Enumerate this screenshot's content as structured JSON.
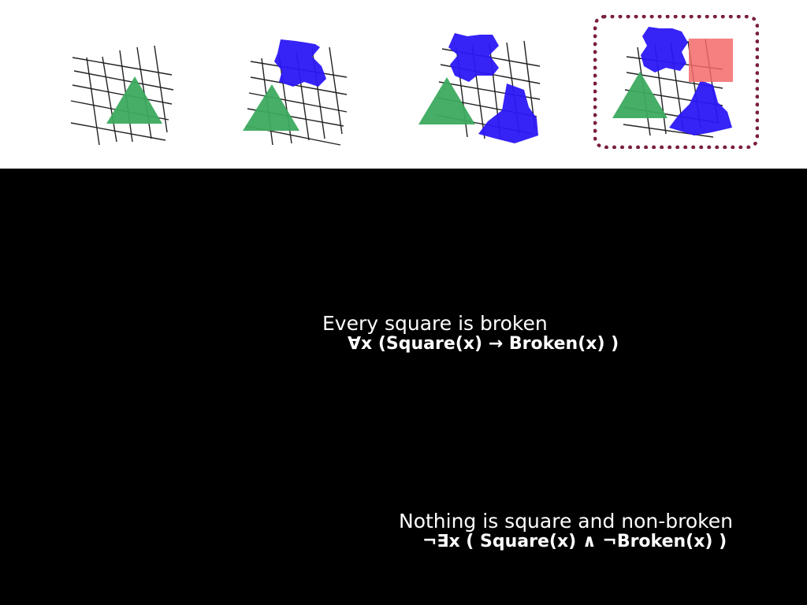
{
  "slide": {
    "statements": [
      {
        "english": "Every square is broken",
        "formula": "∀x (Square(x) → Broken(x) )"
      },
      {
        "english": "Nothing is square and non-broken",
        "formula": "¬∃x ( Square(x) ∧ ¬Broken(x) )"
      }
    ],
    "colors": {
      "triangle": "#3caa5e",
      "blob": "#2b17f5",
      "square": "#f46a6a",
      "frame": "#7a1f3a",
      "grid": "#222222"
    }
  }
}
